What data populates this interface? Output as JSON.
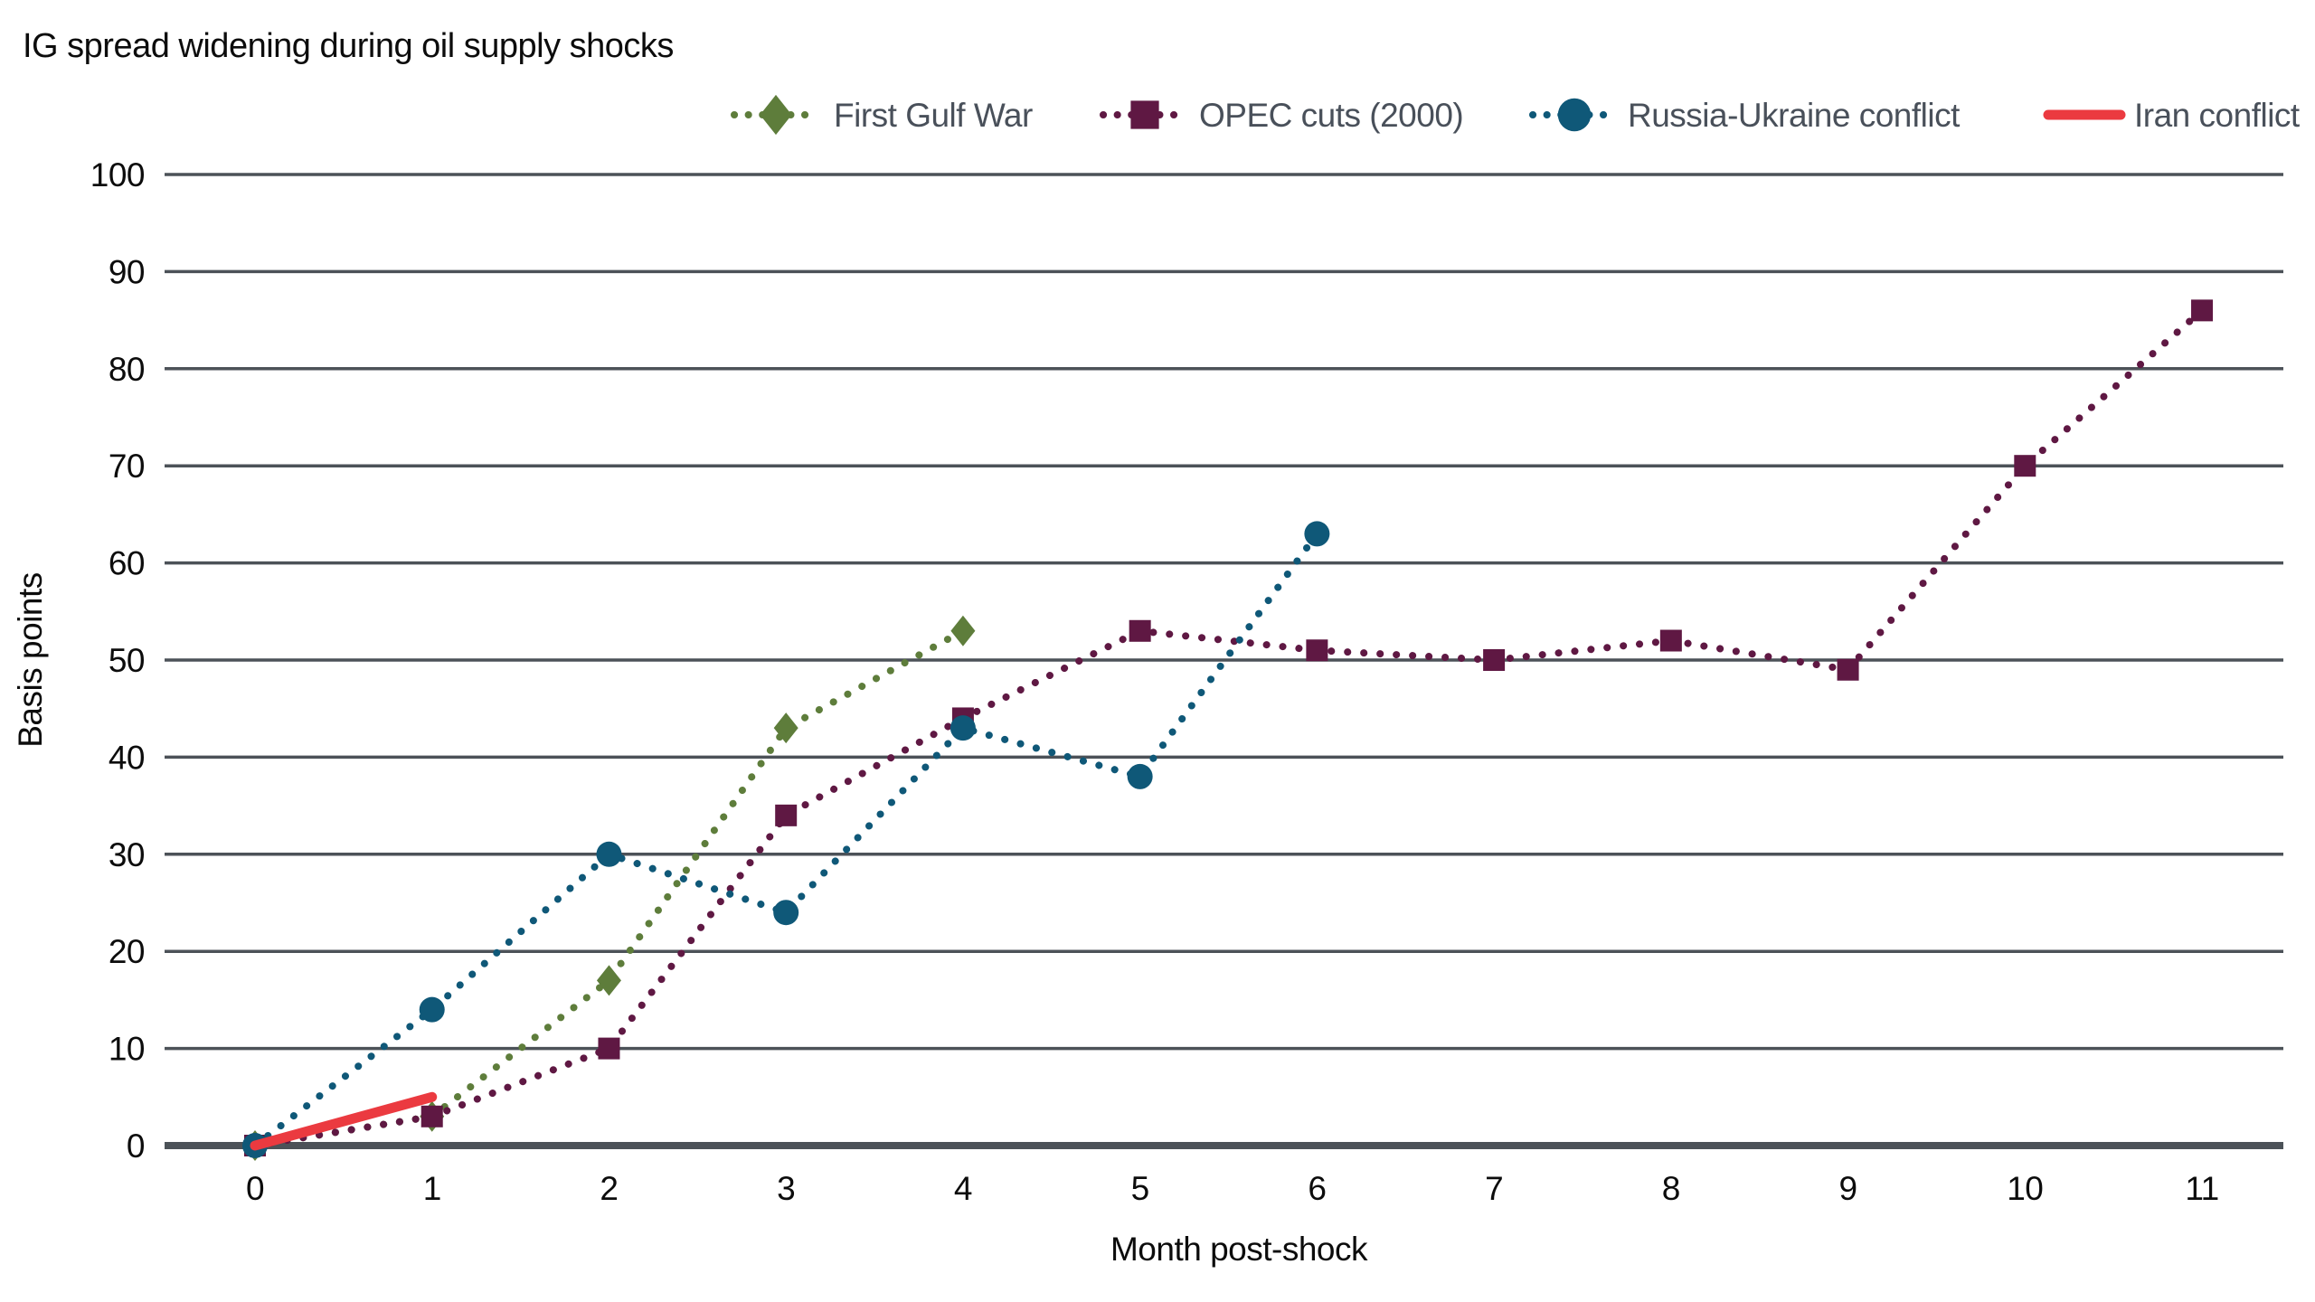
{
  "title": "IG spread widening during oil supply shocks",
  "colors": {
    "first_gulf_war": "#5E7D3B",
    "opec_cuts_2000": "#5F1843",
    "russia_ukraine": "#0F5878",
    "iran_conflict": "#EB3A40",
    "gridline": "#4C5258",
    "axis_line": "#4C5258",
    "legend_text": "#49505A",
    "tick_text": "#0C0C0C"
  },
  "chart_data": {
    "type": "line",
    "title": "IG spread widening during oil supply shocks",
    "xlabel": "Month post-shock",
    "ylabel": "Basis points",
    "x_ticks": [
      0,
      1,
      2,
      3,
      4,
      5,
      6,
      7,
      8,
      9,
      10,
      11
    ],
    "y_ticks": [
      0,
      10,
      20,
      30,
      40,
      50,
      60,
      70,
      80,
      90,
      100
    ],
    "xlim": [
      0,
      11
    ],
    "ylim": [
      0,
      100
    ],
    "grid": "horizontal",
    "legend_position": "top",
    "series": [
      {
        "name": "First Gulf War",
        "color": "#5E7D3B",
        "marker": "diamond",
        "line_style": "dotted",
        "x": [
          0,
          1,
          2,
          3,
          4
        ],
        "values": [
          0,
          3,
          17,
          43,
          53
        ]
      },
      {
        "name": "OPEC cuts (2000)",
        "color": "#5F1843",
        "marker": "square",
        "line_style": "dotted",
        "x": [
          0,
          1,
          2,
          3,
          4,
          5,
          6,
          7,
          8,
          9,
          10,
          11
        ],
        "values": [
          0,
          3,
          10,
          34,
          44,
          53,
          51,
          50,
          52,
          49,
          70,
          86
        ]
      },
      {
        "name": "Russia-Ukraine conflict",
        "color": "#0F5878",
        "marker": "circle",
        "line_style": "dotted",
        "x": [
          0,
          1,
          2,
          3,
          4,
          5,
          6
        ],
        "values": [
          0,
          14,
          30,
          24,
          43,
          38,
          63
        ]
      },
      {
        "name": "Iran conflict",
        "color": "#EB3A40",
        "marker": "none",
        "line_style": "solid",
        "x": [
          0,
          1
        ],
        "values": [
          0,
          5
        ]
      }
    ]
  }
}
